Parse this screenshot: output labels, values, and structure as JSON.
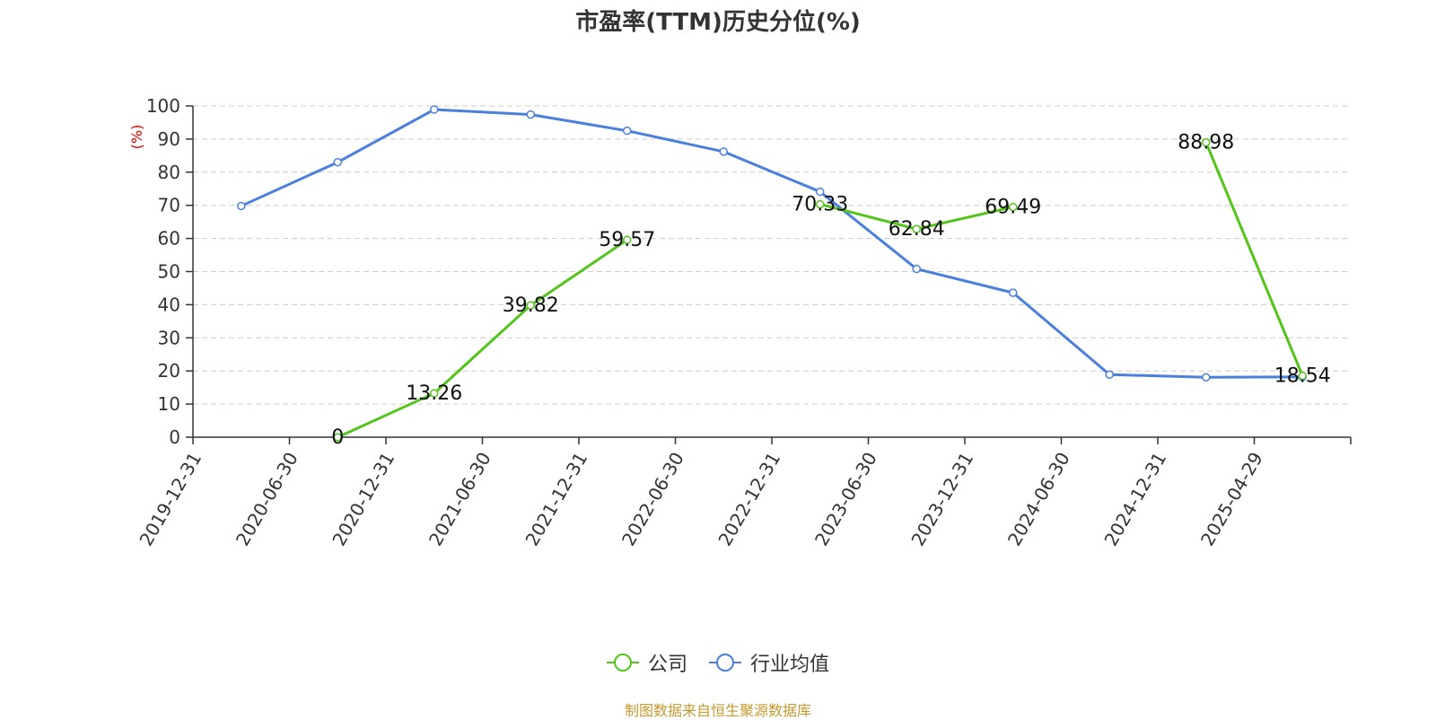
{
  "chart_data": {
    "type": "line",
    "title": "市盈率(TTM)历史分位(%)",
    "ylabel": "(%)",
    "xlabel": "",
    "ylim": [
      0,
      100
    ],
    "yticks": [
      0,
      10,
      20,
      30,
      40,
      50,
      60,
      70,
      80,
      90,
      100
    ],
    "categories": [
      "2019-12-31",
      "2020-06-30",
      "2020-12-31",
      "2021-06-30",
      "2021-12-31",
      "2022-06-30",
      "2022-12-31",
      "2023-06-30",
      "2023-12-31",
      "2024-06-30",
      "2024-12-31",
      "2025-04-29"
    ],
    "grid": true,
    "legend_position": "bottom",
    "series": [
      {
        "name": "公司",
        "color": "#52c41a",
        "values": [
          null,
          0,
          13.26,
          39.82,
          59.57,
          null,
          70.33,
          62.84,
          69.49,
          null,
          88.98,
          18.54
        ],
        "labels": [
          null,
          "0",
          "13.26",
          "39.82",
          "59.57",
          null,
          "70.33",
          "62.84",
          "69.49",
          null,
          "88.98",
          "18.54"
        ]
      },
      {
        "name": "行业均值",
        "color": "#4a7fdc",
        "values": [
          69.8,
          83.0,
          98.9,
          97.4,
          92.5,
          86.2,
          74.1,
          50.8,
          43.6,
          18.9,
          18.1,
          18.2
        ],
        "labels": []
      }
    ]
  },
  "source_note": "制图数据来自恒生聚源数据库",
  "colors": {
    "axis": "#333333",
    "grid": "#cccccc",
    "ylabel": "#e00000"
  }
}
